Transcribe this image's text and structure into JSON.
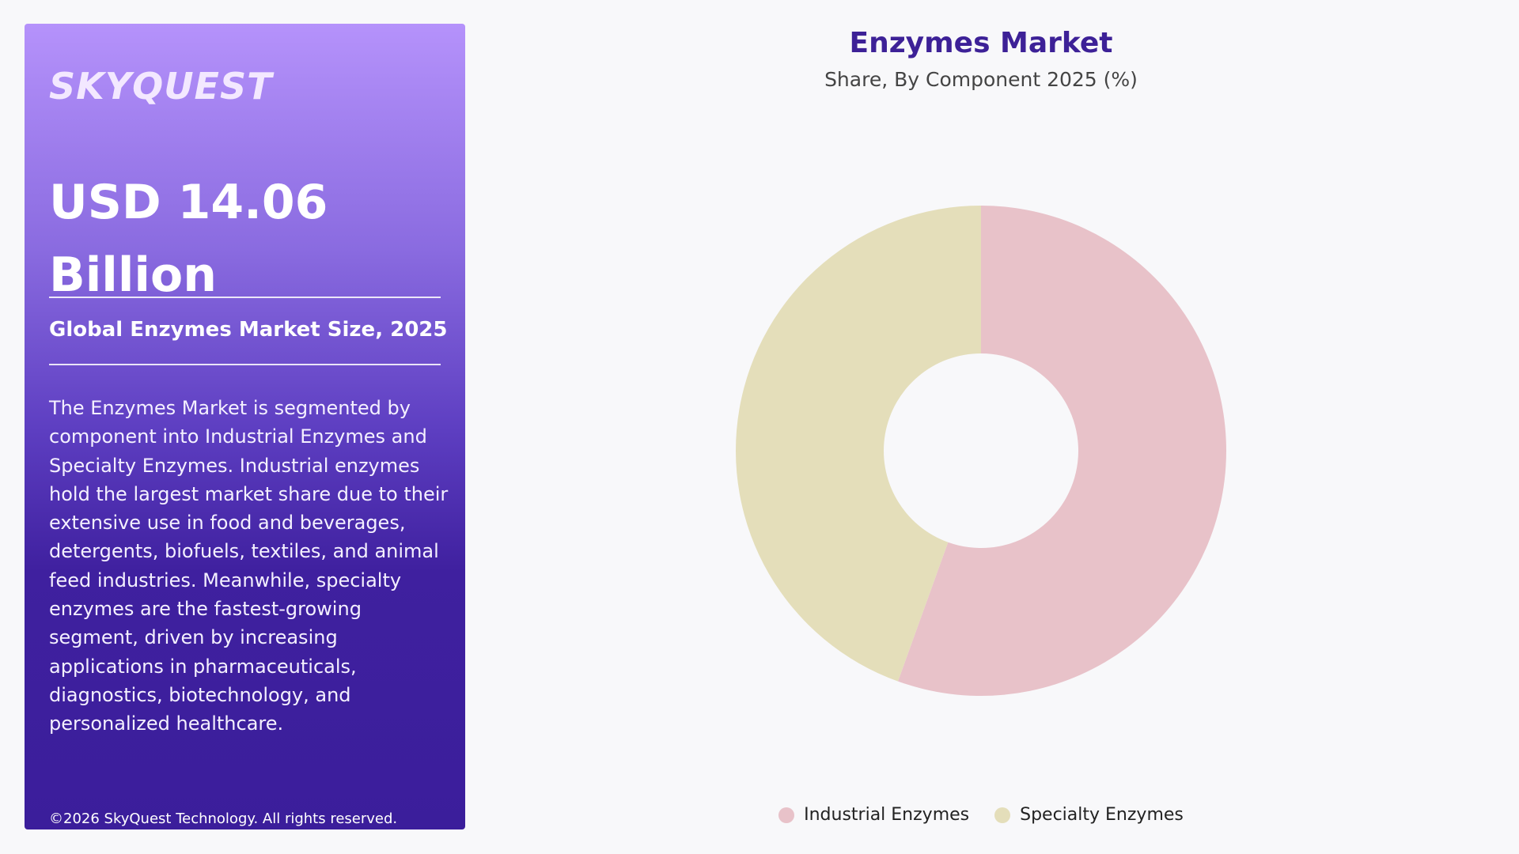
{
  "brand": {
    "logo_text": "SKYQUEST"
  },
  "panel": {
    "market_size_line1": "USD 14.06",
    "market_size_line2": "Billion",
    "market_size_label": "Global Enzymes Market Size, 2025",
    "description": "The Enzymes Market is segmented by component into Industrial Enzymes and Specialty Enzymes. Industrial enzymes hold the largest market share due to their extensive use in food and beverages, detergents, biofuels, textiles, and animal feed industries. Meanwhile, specialty enzymes are the fastest-growing segment, driven by increasing applications in pharmaceuticals, diagnostics, biotechnology, and personalized healthcare.",
    "copyright": "©2026 SkyQuest Technology. All rights reserved."
  },
  "chart_data": {
    "type": "pie",
    "donut": true,
    "title": "Enzymes Market",
    "subtitle": "Share, By Component 2025 (%)",
    "categories": [
      "Industrial Enzymes",
      "Specialty Enzymes"
    ],
    "values": [
      55.5,
      44.5
    ],
    "colors": [
      "#e8c2c9",
      "#e4deba"
    ],
    "legend_position": "bottom"
  }
}
